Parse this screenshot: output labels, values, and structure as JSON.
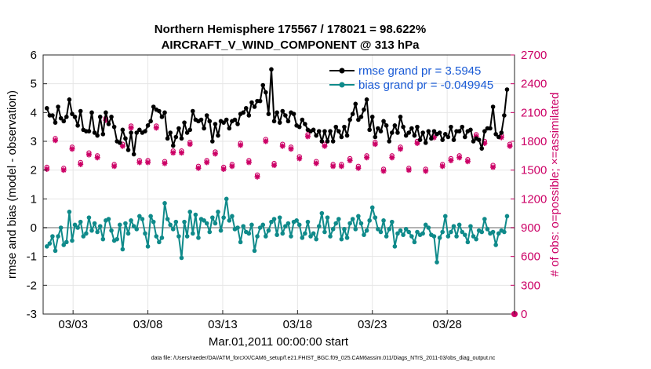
{
  "chart_data": {
    "type": "line",
    "title": "Northern Hemisphere 175567 / 178021 = 98.622%",
    "subtitle": "AIRCRAFT_V_WIND_COMPONENT @ 313 hPa",
    "xlabel": "Mar.01,2011 00:00:00 start",
    "ylabel": "rmse and bias (model - observation)",
    "ylabel_right": "# of obs: o=possible; ×=assimilated",
    "footnote": "data file: /Users/raeder/DAI/ATM_forcXX/CAM6_setup/f.e21.FHIST_BGC.f09_025.CAM6assim.011/Diags_NTrS_2011-03/obs_diag_output.nc",
    "x_ticks": [
      "03/03",
      "03/08",
      "03/13",
      "03/18",
      "03/23",
      "03/28"
    ],
    "x_tick_days": [
      3,
      8,
      13,
      18,
      23,
      28
    ],
    "xlim": [
      1.0,
      32.5
    ],
    "ylim": [
      -3,
      6
    ],
    "y_ticks": [
      "-3",
      "-2",
      "-1",
      "0",
      "1",
      "2",
      "3",
      "4",
      "5",
      "6"
    ],
    "ylim_right": [
      0,
      2700
    ],
    "y_ticks_right": [
      "0",
      "300",
      "600",
      "900",
      "1200",
      "1500",
      "1800",
      "2100",
      "2400",
      "2700"
    ],
    "grid": true,
    "legend_position": "top-right",
    "series": [
      {
        "name": "rmse grand pr = 3.5945",
        "color": "#000000",
        "marker": "dot",
        "values": [
          4.15,
          3.9,
          3.9,
          3.65,
          4.2,
          3.8,
          3.7,
          3.85,
          4.45,
          3.95,
          3.85,
          3.55,
          4.05,
          3.4,
          3.35,
          3.35,
          4.0,
          3.3,
          3.2,
          3.85,
          3.25,
          4.0,
          3.6,
          3.85,
          3.5,
          3.0,
          2.95,
          3.4,
          3.1,
          2.7,
          3.3,
          2.55,
          3.3,
          3.4,
          3.3,
          3.35,
          3.55,
          3.7,
          4.2,
          4.1,
          4.05,
          3.85,
          4.0,
          3.1,
          3.3,
          2.85,
          3.15,
          3.45,
          3.1,
          3.65,
          3.3,
          3.4,
          4.05,
          3.75,
          3.7,
          3.75,
          3.45,
          3.9,
          3.7,
          3.0,
          3.6,
          3.2,
          3.7,
          3.65,
          3.75,
          3.45,
          3.7,
          3.75,
          3.6,
          3.95,
          4.0,
          4.15,
          3.9,
          4.35,
          4.2,
          4.4,
          4.4,
          4.95,
          4.7,
          3.95,
          5.5,
          3.7,
          4.0,
          3.65,
          4.05,
          3.9,
          3.7,
          4.0,
          3.95,
          3.55,
          3.5,
          3.75,
          3.6,
          3.4,
          3.35,
          3.4,
          3.2,
          3.35,
          3.0,
          3.35,
          3.0,
          3.35,
          3.0,
          3.5,
          3.35,
          3.15,
          3.5,
          3.2,
          3.75,
          3.95,
          4.3,
          3.75,
          3.85,
          4.1,
          4.45,
          3.4,
          3.85,
          3.15,
          3.45,
          3.35,
          3.7,
          3.55,
          3.0,
          3.3,
          3.55,
          3.3,
          3.85,
          3.5,
          3.2,
          3.3,
          3.45,
          3.2,
          3.5,
          3.05,
          3.3,
          2.95,
          3.35,
          3.1,
          3.35,
          3.25,
          3.3,
          3.05,
          3.25,
          3.15,
          3.5,
          3.05,
          3.35,
          3.35,
          3.5,
          3.15,
          3.35,
          3.4,
          3.0,
          3.1,
          3.05,
          2.75,
          3.35,
          3.45,
          3.45,
          4.2,
          3.25,
          3.15,
          3.3,
          3.9,
          4.8
        ]
      },
      {
        "name": "bias grand pr = -0.049945",
        "color": "#0f8a8a",
        "marker": "dot",
        "values": [
          -0.65,
          -0.55,
          -0.3,
          -0.8,
          -0.3,
          0.0,
          -0.6,
          -0.5,
          0.55,
          -0.45,
          0.1,
          0.0,
          0.2,
          -0.3,
          -0.2,
          0.35,
          -0.1,
          0.15,
          -0.15,
          0.05,
          -0.4,
          0.25,
          0.3,
          -0.1,
          -0.45,
          -0.4,
          0.1,
          -0.75,
          0.15,
          -0.2,
          0.25,
          0.05,
          -0.05,
          0.4,
          0.3,
          -0.2,
          -0.65,
          0.4,
          0.2,
          -0.3,
          -0.5,
          -0.35,
          0.85,
          0.3,
          0.1,
          -0.05,
          0.2,
          -0.3,
          -1.05,
          0.2,
          -0.3,
          0.55,
          -0.2,
          0.45,
          -0.35,
          0.3,
          0.25,
          0.15,
          -0.15,
          0.35,
          0.15,
          0.55,
          -0.1,
          0.35,
          1.0,
          0.25,
          0.4,
          -0.05,
          0.0,
          -0.5,
          0.05,
          -0.15,
          -0.2,
          0.1,
          -0.8,
          -0.3,
          0.0,
          0.1,
          -0.3,
          -0.1,
          0.2,
          0.3,
          -0.25,
          0.35,
          -0.2,
          0.05,
          0.15,
          -0.3,
          0.2,
          0.25,
          0.1,
          -0.35,
          -0.2,
          0.2,
          -0.3,
          -0.2,
          -0.4,
          0.05,
          0.5,
          -0.15,
          0.35,
          -0.3,
          -0.05,
          0.15,
          0.3,
          -0.4,
          -0.05,
          -0.35,
          0.15,
          0.3,
          -0.05,
          0.4,
          0.15,
          -0.25,
          -0.1,
          0.25,
          0.7,
          0.35,
          -0.05,
          -0.15,
          0.25,
          -0.3,
          -0.05,
          0.2,
          -0.65,
          -0.2,
          -0.1,
          -0.25,
          -0.05,
          -0.15,
          -0.3,
          -0.5,
          -0.15,
          -0.25,
          -0.2,
          0.1,
          0.0,
          -0.25,
          -0.3,
          -1.2,
          -0.35,
          -0.15,
          0.4,
          -0.3,
          -0.15,
          0.05,
          -0.3,
          0.1,
          -0.15,
          -0.25,
          -0.5,
          0.05,
          -0.3,
          -0.4,
          -0.1,
          -0.15,
          0.3,
          -0.05,
          -0.2,
          -0.15,
          -0.6,
          -0.2,
          -0.1,
          -0.15,
          0.4
        ]
      },
      {
        "name": "# of obs possible",
        "color": "#cc0066",
        "marker": "circle",
        "axis": "right",
        "values": [
          1530,
          1800,
          1390,
          1830,
          1600,
          1840,
          1520,
          1580,
          1800,
          1740,
          2090,
          1620,
          1580,
          2040,
          1920,
          1680,
          1320,
          1730,
          1650,
          2180,
          1530,
          2040,
          1680,
          1650,
          1560,
          1850,
          1620,
          1770,
          1700,
          1530,
          1960,
          1610,
          1660,
          1600,
          1420,
          1730,
          1600,
          1530,
          1750,
          1960,
          1560,
          1980,
          1590,
          1520,
          1500,
          1700,
          1460,
          1560,
          1700,
          1590,
          1650,
          1790,
          1820,
          1610,
          1540,
          1560,
          1910,
          1600,
          1710,
          1750,
          1690,
          1590,
          1780,
          1530,
          1440,
          1760,
          1560,
          1630,
          1770,
          1780,
          1690,
          1520,
          1600,
          1610,
          1710,
          1450,
          1710,
          1480,
          1820,
          1610,
          1800,
          1570,
          1820,
          1640,
          1770,
          1510,
          1590,
          1740,
          1620,
          1820,
          1640,
          1680,
          1580,
          1870,
          1520,
          1700,
          1590,
          1570,
          1790,
          1770,
          1660,
          1760,
          1560,
          1630,
          1880,
          1560,
          1830,
          1620,
          1620,
          1460,
          1860,
          1540,
          1840,
          1400,
          1650,
          1860,
          1660,
          1790,
          1620,
          1860,
          1510,
          1900,
          1530,
          1650,
          1460,
          1750,
          1740,
          1650,
          1800,
          1520,
          1830,
          1640,
          1800,
          1600,
          1900,
          1510,
          1630,
          1720,
          1860,
          1570,
          1650,
          1560,
          1800,
          1720,
          1620,
          1760,
          1840,
          1650,
          1620,
          1880,
          1610,
          1540,
          1580,
          1870,
          1520,
          1580,
          1800,
          1500,
          1810,
          1550,
          1530,
          1500,
          1860,
          1880,
          1580,
          1770
        ]
      },
      {
        "name": "# of obs assimilated",
        "color": "#cc0066",
        "marker": "asterisk",
        "axis": "right",
        "values": [
          1510,
          1780,
          1370,
          1810,
          1580,
          1820,
          1500,
          1560,
          1780,
          1720,
          2070,
          1600,
          1560,
          2020,
          1900,
          1660,
          1300,
          1710,
          1630,
          2160,
          1510,
          2020,
          1660,
          1630,
          1540,
          1830,
          1600,
          1750,
          1680,
          1510,
          1940,
          1590,
          1640,
          1580,
          1400,
          1710,
          1580,
          1510,
          1730,
          1940,
          1540,
          1960,
          1570,
          1500,
          1480,
          1680,
          1440,
          1540,
          1680,
          1570,
          1630,
          1770,
          1800,
          1590,
          1520,
          1540,
          1890,
          1580,
          1690,
          1730,
          1670,
          1570,
          1760,
          1510,
          1420,
          1740,
          1540,
          1610,
          1750,
          1760,
          1670,
          1500,
          1580,
          1590,
          1690,
          1430,
          1690,
          1460,
          1800,
          1590,
          1780,
          1550,
          1800,
          1620,
          1750,
          1490,
          1570,
          1720,
          1600,
          1800,
          1620,
          1660,
          1560,
          1850,
          1500,
          1680,
          1570,
          1550,
          1770,
          1750,
          1640,
          1740,
          1540,
          1610,
          1860,
          1540,
          1810,
          1600,
          1600,
          1440,
          1840,
          1520,
          1820,
          1380,
          1630,
          1840,
          1640,
          1770,
          1600,
          1840,
          1490,
          1880,
          1510,
          1630,
          1440,
          1730,
          1720,
          1630,
          1780,
          1500,
          1810,
          1620,
          1780,
          1580,
          1880,
          1490,
          1610,
          1700,
          1840,
          1550,
          1630,
          1540,
          1780,
          1700,
          1600,
          1740,
          1820,
          1630,
          1600,
          1860,
          1590,
          1520,
          1560,
          1850,
          1500,
          1560,
          1780,
          1480,
          1790,
          1530,
          1510,
          1480,
          1840,
          1860,
          1560,
          1750
        ]
      }
    ]
  }
}
